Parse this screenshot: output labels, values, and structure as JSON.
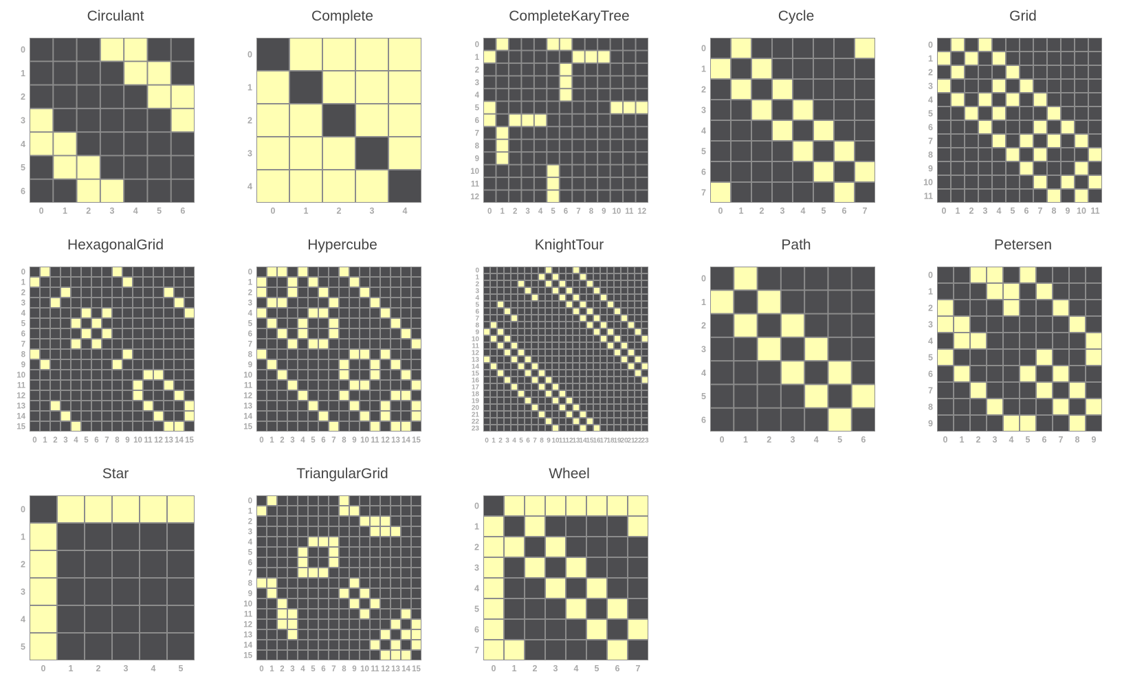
{
  "colors": {
    "edge": "#ffffb3",
    "empty": "#4d4d50",
    "cell_border": "#8c8c8c",
    "tick": "#a9a9a9"
  },
  "chart_data": [
    {
      "type": "heatmap",
      "title": "Circulant",
      "n": 7,
      "ticks": [
        "0",
        "1",
        "2",
        "3",
        "4",
        "5",
        "6"
      ],
      "edges": [
        [
          0,
          3
        ],
        [
          0,
          4
        ],
        [
          1,
          4
        ],
        [
          1,
          5
        ],
        [
          2,
          5
        ],
        [
          2,
          6
        ],
        [
          3,
          6
        ]
      ]
    },
    {
      "type": "heatmap",
      "title": "Complete",
      "n": 5,
      "ticks": [
        "0",
        "1",
        "2",
        "3",
        "4"
      ],
      "edges": [
        [
          0,
          1
        ],
        [
          0,
          2
        ],
        [
          0,
          3
        ],
        [
          0,
          4
        ],
        [
          1,
          2
        ],
        [
          1,
          3
        ],
        [
          1,
          4
        ],
        [
          2,
          3
        ],
        [
          2,
          4
        ],
        [
          3,
          4
        ]
      ]
    },
    {
      "type": "heatmap",
      "title": "CompleteKaryTree",
      "n": 13,
      "ticks": [
        "0",
        "1",
        "2",
        "3",
        "4",
        "5",
        "6",
        "7",
        "8",
        "9",
        "10",
        "11",
        "12"
      ],
      "edges": [
        [
          0,
          1
        ],
        [
          0,
          5
        ],
        [
          0,
          6
        ],
        [
          1,
          7
        ],
        [
          1,
          8
        ],
        [
          1,
          9
        ],
        [
          5,
          10
        ],
        [
          5,
          11
        ],
        [
          5,
          12
        ],
        [
          6,
          2
        ],
        [
          6,
          3
        ],
        [
          6,
          4
        ]
      ]
    },
    {
      "type": "heatmap",
      "title": "Cycle",
      "n": 8,
      "ticks": [
        "0",
        "1",
        "2",
        "3",
        "4",
        "5",
        "6",
        "7"
      ],
      "edges": [
        [
          0,
          1
        ],
        [
          1,
          2
        ],
        [
          2,
          3
        ],
        [
          3,
          4
        ],
        [
          4,
          5
        ],
        [
          5,
          6
        ],
        [
          6,
          7
        ],
        [
          0,
          7
        ]
      ]
    },
    {
      "type": "heatmap",
      "title": "Grid",
      "n": 12,
      "ticks": [
        "0",
        "1",
        "2",
        "3",
        "4",
        "5",
        "6",
        "7",
        "8",
        "9",
        "10",
        "11"
      ],
      "edges": [
        [
          0,
          1
        ],
        [
          0,
          3
        ],
        [
          1,
          2
        ],
        [
          1,
          4
        ],
        [
          2,
          5
        ],
        [
          3,
          4
        ],
        [
          3,
          6
        ],
        [
          4,
          5
        ],
        [
          4,
          7
        ],
        [
          5,
          8
        ],
        [
          6,
          7
        ],
        [
          6,
          9
        ],
        [
          7,
          8
        ],
        [
          7,
          10
        ],
        [
          8,
          11
        ],
        [
          9,
          10
        ],
        [
          10,
          11
        ]
      ]
    },
    {
      "type": "heatmap",
      "title": "HexagonalGrid",
      "n": 16,
      "ticks": [
        "0",
        "1",
        "2",
        "3",
        "4",
        "5",
        "6",
        "7",
        "8",
        "9",
        "10",
        "11",
        "12",
        "13",
        "14",
        "15"
      ],
      "edges": [
        [
          0,
          1
        ],
        [
          0,
          8
        ],
        [
          1,
          9
        ],
        [
          2,
          3
        ],
        [
          2,
          13
        ],
        [
          3,
          14
        ],
        [
          4,
          5
        ],
        [
          4,
          15
        ],
        [
          5,
          6
        ],
        [
          6,
          7
        ],
        [
          7,
          4
        ],
        [
          8,
          9
        ],
        [
          10,
          11
        ],
        [
          10,
          12
        ],
        [
          11,
          13
        ],
        [
          12,
          14
        ],
        [
          13,
          15
        ],
        [
          14,
          15
        ]
      ]
    },
    {
      "type": "heatmap",
      "title": "Hypercube",
      "n": 16,
      "ticks": [
        "0",
        "1",
        "2",
        "3",
        "4",
        "5",
        "6",
        "7",
        "8",
        "9",
        "10",
        "11",
        "12",
        "13",
        "14",
        "15"
      ],
      "edges": [
        [
          0,
          1
        ],
        [
          0,
          2
        ],
        [
          0,
          4
        ],
        [
          0,
          8
        ],
        [
          1,
          3
        ],
        [
          1,
          5
        ],
        [
          1,
          9
        ],
        [
          2,
          3
        ],
        [
          2,
          6
        ],
        [
          2,
          10
        ],
        [
          3,
          7
        ],
        [
          3,
          11
        ],
        [
          4,
          5
        ],
        [
          4,
          6
        ],
        [
          4,
          12
        ],
        [
          5,
          7
        ],
        [
          5,
          13
        ],
        [
          6,
          7
        ],
        [
          6,
          14
        ],
        [
          7,
          15
        ],
        [
          8,
          9
        ],
        [
          8,
          10
        ],
        [
          8,
          12
        ],
        [
          9,
          11
        ],
        [
          9,
          13
        ],
        [
          10,
          11
        ],
        [
          10,
          14
        ],
        [
          11,
          15
        ],
        [
          12,
          13
        ],
        [
          12,
          14
        ],
        [
          13,
          15
        ],
        [
          14,
          15
        ]
      ]
    },
    {
      "type": "heatmap",
      "title": "KnightTour",
      "n": 24,
      "ticks": [
        "0",
        "1",
        "2",
        "3",
        "4",
        "5",
        "6",
        "7",
        "8",
        "9",
        "10",
        "11",
        "12",
        "13",
        "14",
        "15",
        "16",
        "17",
        "18",
        "19",
        "20",
        "21",
        "22",
        "23"
      ],
      "edges": [
        [
          0,
          9
        ],
        [
          0,
          13
        ],
        [
          1,
          10
        ],
        [
          1,
          14
        ],
        [
          1,
          8
        ],
        [
          2,
          11
        ],
        [
          2,
          15
        ],
        [
          2,
          9
        ],
        [
          2,
          5
        ],
        [
          3,
          12
        ],
        [
          3,
          16
        ],
        [
          3,
          10
        ],
        [
          3,
          6
        ],
        [
          4,
          13
        ],
        [
          4,
          17
        ],
        [
          4,
          11
        ],
        [
          4,
          7
        ],
        [
          5,
          14
        ],
        [
          5,
          18
        ],
        [
          5,
          12
        ],
        [
          6,
          15
        ],
        [
          6,
          19
        ],
        [
          6,
          13
        ],
        [
          7,
          16
        ],
        [
          7,
          20
        ],
        [
          7,
          14
        ],
        [
          8,
          17
        ],
        [
          8,
          21
        ],
        [
          8,
          15
        ],
        [
          9,
          18
        ],
        [
          9,
          22
        ],
        [
          9,
          16
        ],
        [
          10,
          19
        ],
        [
          10,
          23
        ],
        [
          10,
          17
        ],
        [
          11,
          20
        ],
        [
          11,
          18
        ],
        [
          12,
          21
        ],
        [
          12,
          19
        ],
        [
          13,
          22
        ],
        [
          13,
          20
        ],
        [
          14,
          23
        ],
        [
          14,
          21
        ],
        [
          15,
          22
        ],
        [
          16,
          23
        ]
      ]
    },
    {
      "type": "heatmap",
      "title": "Path",
      "n": 7,
      "ticks": [
        "0",
        "1",
        "2",
        "3",
        "4",
        "5",
        "6"
      ],
      "edges": [
        [
          0,
          1
        ],
        [
          1,
          2
        ],
        [
          2,
          3
        ],
        [
          3,
          4
        ],
        [
          4,
          5
        ],
        [
          5,
          6
        ]
      ]
    },
    {
      "type": "heatmap",
      "title": "Petersen",
      "n": 10,
      "ticks": [
        "0",
        "1",
        "2",
        "3",
        "4",
        "5",
        "6",
        "7",
        "8",
        "9"
      ],
      "edges": [
        [
          0,
          2
        ],
        [
          0,
          3
        ],
        [
          0,
          5
        ],
        [
          1,
          3
        ],
        [
          1,
          4
        ],
        [
          1,
          6
        ],
        [
          2,
          4
        ],
        [
          2,
          7
        ],
        [
          3,
          8
        ],
        [
          4,
          9
        ],
        [
          5,
          6
        ],
        [
          5,
          9
        ],
        [
          6,
          7
        ],
        [
          7,
          8
        ],
        [
          8,
          9
        ]
      ]
    },
    {
      "type": "heatmap",
      "title": "Star",
      "n": 6,
      "ticks": [
        "0",
        "1",
        "2",
        "3",
        "4",
        "5"
      ],
      "edges": [
        [
          0,
          1
        ],
        [
          0,
          2
        ],
        [
          0,
          3
        ],
        [
          0,
          4
        ],
        [
          0,
          5
        ]
      ]
    },
    {
      "type": "heatmap",
      "title": "TriangularGrid",
      "n": 16,
      "ticks": [
        "0",
        "1",
        "2",
        "3",
        "4",
        "5",
        "6",
        "7",
        "8",
        "9",
        "10",
        "11",
        "12",
        "13",
        "14",
        "15"
      ],
      "edges": [
        [
          0,
          1
        ],
        [
          0,
          8
        ],
        [
          1,
          9
        ],
        [
          1,
          8
        ],
        [
          2,
          10
        ],
        [
          2,
          11
        ],
        [
          2,
          12
        ],
        [
          3,
          11
        ],
        [
          3,
          13
        ],
        [
          3,
          12
        ],
        [
          4,
          5
        ],
        [
          4,
          6
        ],
        [
          4,
          7
        ],
        [
          5,
          7
        ],
        [
          6,
          7
        ],
        [
          8,
          9
        ],
        [
          9,
          10
        ],
        [
          10,
          11
        ],
        [
          11,
          14
        ],
        [
          12,
          13
        ],
        [
          12,
          15
        ],
        [
          13,
          14
        ],
        [
          13,
          15
        ],
        [
          14,
          15
        ]
      ]
    },
    {
      "type": "heatmap",
      "title": "Wheel",
      "n": 8,
      "ticks": [
        "0",
        "1",
        "2",
        "3",
        "4",
        "5",
        "6",
        "7"
      ],
      "edges": [
        [
          0,
          1
        ],
        [
          0,
          2
        ],
        [
          0,
          3
        ],
        [
          0,
          4
        ],
        [
          0,
          5
        ],
        [
          0,
          6
        ],
        [
          0,
          7
        ],
        [
          1,
          2
        ],
        [
          2,
          3
        ],
        [
          3,
          4
        ],
        [
          4,
          5
        ],
        [
          5,
          6
        ],
        [
          6,
          7
        ],
        [
          1,
          7
        ]
      ]
    }
  ]
}
